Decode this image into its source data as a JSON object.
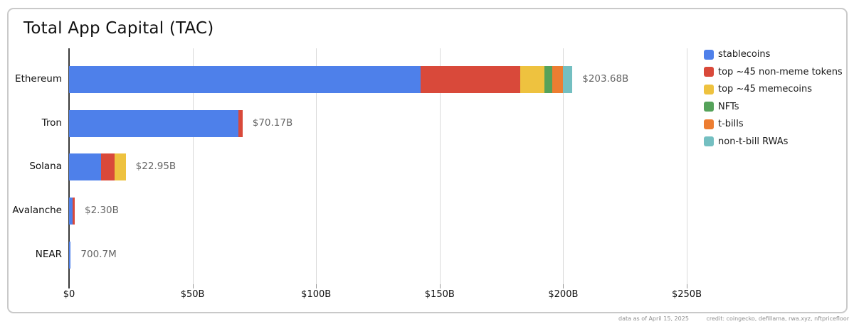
{
  "title": "Total App Capital (TAC)",
  "chart_data": {
    "type": "bar",
    "orientation": "horizontal",
    "stacked": true,
    "title": "Total App Capital (TAC)",
    "categories": [
      "Ethereum",
      "Tron",
      "Solana",
      "Avalanche",
      "NEAR"
    ],
    "series": [
      {
        "name": "stablecoins",
        "color": "#4e80ea",
        "values": [
          142.3,
          68.5,
          13.0,
          1.5,
          0.7
        ]
      },
      {
        "name": "top ~45 non-meme tokens",
        "color": "#d9493a",
        "values": [
          40.3,
          1.7,
          5.3,
          0.8,
          0
        ]
      },
      {
        "name": "top ~45 memecoins",
        "color": "#eec23f",
        "values": [
          9.8,
          0,
          4.65,
          0,
          0
        ]
      },
      {
        "name": "NFTs",
        "color": "#55a25a",
        "values": [
          3.2,
          0,
          0,
          0,
          0
        ]
      },
      {
        "name": "t-bills",
        "color": "#ed7d31",
        "values": [
          4.3,
          0,
          0,
          0,
          0
        ]
      },
      {
        "name": "non-t-bill RWAs",
        "color": "#74bfc1",
        "values": [
          3.8,
          0,
          0,
          0,
          0
        ]
      }
    ],
    "total_labels": [
      "$203.68B",
      "$70.17B",
      "$22.95B",
      "$2.30B",
      "700.7M"
    ],
    "totals_billions": [
      203.68,
      70.17,
      22.95,
      2.3,
      0.7007
    ],
    "x_ticks": [
      "$0",
      "$50B",
      "$100B",
      "$150B",
      "$200B",
      "$250B"
    ],
    "x_tick_values": [
      0,
      50,
      100,
      150,
      200,
      250
    ],
    "xlim": [
      0,
      250
    ],
    "unit": "USD billions",
    "grid": "vertical",
    "legend_position": "top-right"
  },
  "footer": {
    "data_as_of": "data as of April 15, 2025",
    "credit": "credit: coingecko, defillama, rwa.xyz, nftpricefloor"
  }
}
